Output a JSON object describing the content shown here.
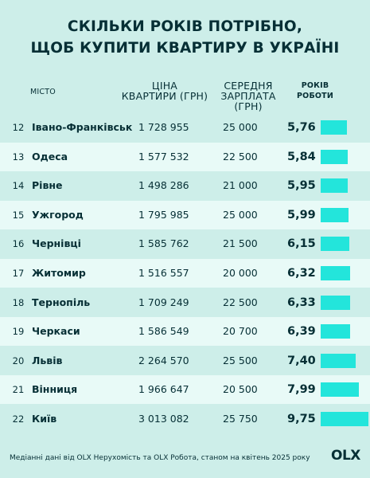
{
  "title": {
    "line1": "СКІЛЬКИ РОКІВ ПОТРІБНО,",
    "line2": "ЩОБ КУПИТИ КВАРТИРУ В УКРАЇНІ"
  },
  "headers": {
    "city": "МІСТО",
    "price_line1": "ЦІНА",
    "price_line2": "КВАРТИРИ (ГРН)",
    "salary_line1": "СЕРЕДНЯ",
    "salary_line2": "ЗАРПЛАТА (ГРН)",
    "years_line1": "РОКІВ",
    "years_line2": "РОБОТИ"
  },
  "rows": [
    {
      "rank": "12",
      "city": "Івано-Франківськ",
      "price": "1 728 955",
      "salary": "25 000",
      "years": "5,76"
    },
    {
      "rank": "13",
      "city": "Одеса",
      "price": "1 577 532",
      "salary": "22 500",
      "years": "5,84"
    },
    {
      "rank": "14",
      "city": "Рівне",
      "price": "1 498 286",
      "salary": "21 000",
      "years": "5,95"
    },
    {
      "rank": "15",
      "city": "Ужгород",
      "price": "1 795 985",
      "salary": "25 000",
      "years": "5,99"
    },
    {
      "rank": "16",
      "city": "Чернівці",
      "price": "1 585 762",
      "salary": "21 500",
      "years": "6,15"
    },
    {
      "rank": "17",
      "city": "Житомир",
      "price": "1 516 557",
      "salary": "20 000",
      "years": "6,32"
    },
    {
      "rank": "18",
      "city": "Тернопіль",
      "price": "1 709 249",
      "salary": "22 500",
      "years": "6,33"
    },
    {
      "rank": "19",
      "city": "Черкаси",
      "price": "1 586 549",
      "salary": "20 700",
      "years": "6,39"
    },
    {
      "rank": "20",
      "city": "Львів",
      "price": "2 264 570",
      "salary": "25 500",
      "years": "7,40"
    },
    {
      "rank": "21",
      "city": "Вінниця",
      "price": "1 966 647",
      "salary": "20 500",
      "years": "7,99"
    },
    {
      "rank": "22",
      "city": "Київ",
      "price": "3 013 082",
      "salary": "25 750",
      "years": "9,75"
    }
  ],
  "chart_data": {
    "type": "bar",
    "categories": [
      "Івано-Франківськ",
      "Одеса",
      "Рівне",
      "Ужгород",
      "Чернівці",
      "Житомир",
      "Тернопіль",
      "Черкаси",
      "Львів",
      "Вінниця",
      "Київ"
    ],
    "values": [
      5.76,
      5.84,
      5.95,
      5.99,
      6.15,
      6.32,
      6.33,
      6.39,
      7.4,
      7.99,
      9.75
    ],
    "orientation": "horizontal",
    "bar_color": "#23e5db"
  },
  "footer": "Медіанні дані від OLX Нерухомість та OLX Робота, станом на квітень 2025 року",
  "logo": "OLX",
  "colors": {
    "background": "#cdeee9",
    "stripe": "#e8faf7",
    "bar": "#23e5db",
    "text": "#062f35"
  }
}
